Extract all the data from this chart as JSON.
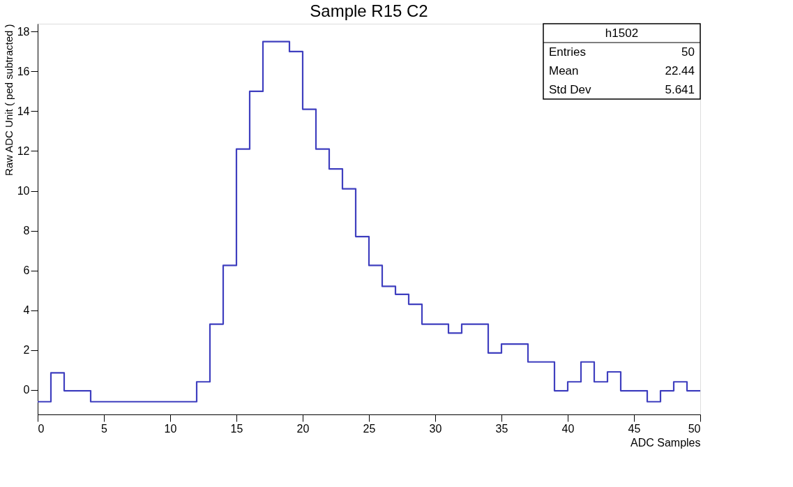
{
  "chart_data": {
    "type": "histogram",
    "title": "Sample R15 C2",
    "xlabel": "ADC Samples",
    "ylabel": "Raw ADC Unit ( ped subtracted )",
    "bins": [
      0,
      1,
      2,
      3,
      4,
      5,
      6,
      7,
      8,
      9,
      10,
      11,
      12,
      13,
      14,
      15,
      16,
      17,
      18,
      19,
      20,
      21,
      22,
      23,
      24,
      25,
      26,
      27,
      28,
      29,
      30,
      31,
      32,
      33,
      34,
      35,
      36,
      37,
      38,
      39,
      40,
      41,
      42,
      43,
      44,
      45,
      46,
      47,
      48,
      49,
      50
    ],
    "values": [
      -0.6,
      0.85,
      -0.05,
      -0.05,
      -0.6,
      -0.6,
      -0.6,
      -0.6,
      -0.6,
      -0.6,
      -0.6,
      -0.6,
      0.4,
      3.3,
      6.25,
      12.1,
      15.0,
      17.5,
      17.5,
      17.0,
      14.1,
      12.1,
      11.1,
      10.1,
      7.7,
      6.25,
      5.2,
      4.8,
      4.3,
      3.3,
      3.3,
      2.85,
      3.3,
      3.3,
      1.85,
      2.3,
      2.3,
      1.4,
      1.4,
      -0.05,
      0.4,
      1.4,
      0.4,
      0.9,
      -0.05,
      -0.05,
      -0.6,
      -0.05,
      0.4,
      -0.05
    ],
    "color": "#3f3fbf",
    "xlim": [
      0,
      50
    ],
    "ylim": [
      -1.24,
      18.4
    ],
    "xticks": [
      0,
      5,
      10,
      15,
      20,
      25,
      30,
      35,
      40,
      45,
      50
    ],
    "yticks": [
      0,
      2,
      4,
      6,
      8,
      10,
      12,
      14,
      16,
      18
    ],
    "grid": false,
    "annotations": [
      "h1502",
      "Entries",
      "50",
      "Mean",
      "22.44",
      "Std Dev",
      "5.641"
    ]
  }
}
